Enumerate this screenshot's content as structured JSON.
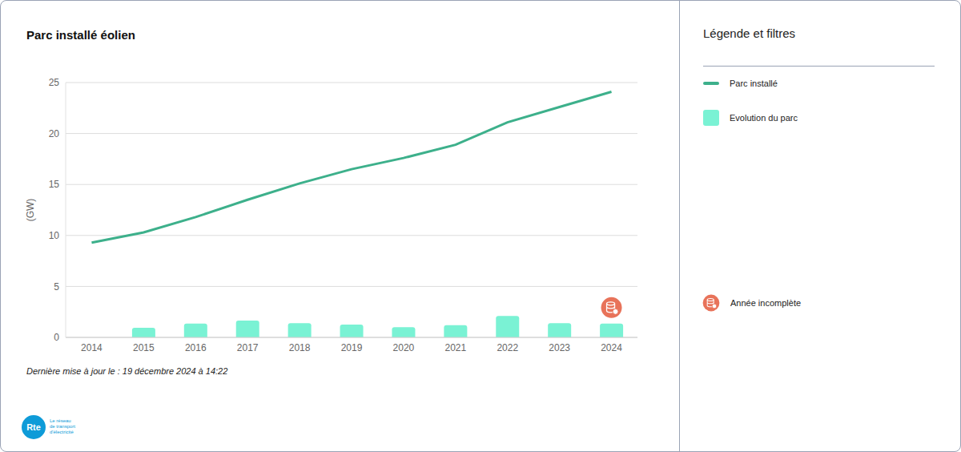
{
  "chart_data": {
    "type": "combo",
    "title": "Parc installé éolien",
    "y_label": "(GW)",
    "categories": [
      "2014",
      "2015",
      "2016",
      "2017",
      "2018",
      "2019",
      "2020",
      "2021",
      "2022",
      "2023",
      "2024"
    ],
    "series": [
      {
        "name": "Parc installé",
        "type": "line",
        "color": "#3db08b",
        "values": [
          9.3,
          10.3,
          11.8,
          13.5,
          15.1,
          16.5,
          17.6,
          18.9,
          21.1,
          22.6,
          24.1
        ]
      },
      {
        "name": "Evolution du parc",
        "type": "bar",
        "color": "#7af2d4",
        "values": [
          null,
          0.95,
          1.35,
          1.65,
          1.4,
          1.25,
          1.0,
          1.2,
          2.1,
          1.4,
          1.35
        ]
      }
    ],
    "ylim": [
      0,
      25
    ],
    "yticks": [
      0,
      5,
      10,
      15,
      20,
      25
    ],
    "grid": true,
    "legend_title": "Légende et filtres",
    "annotations": [
      {
        "category": "2024",
        "label": "Année incomplète"
      }
    ],
    "footnote": "Dernière mise à jour le : 19 décembre 2024 à 14:22"
  },
  "logo": {
    "text": "Rte",
    "caption": [
      "Le réseau",
      "de transport",
      "d'électricité"
    ]
  }
}
